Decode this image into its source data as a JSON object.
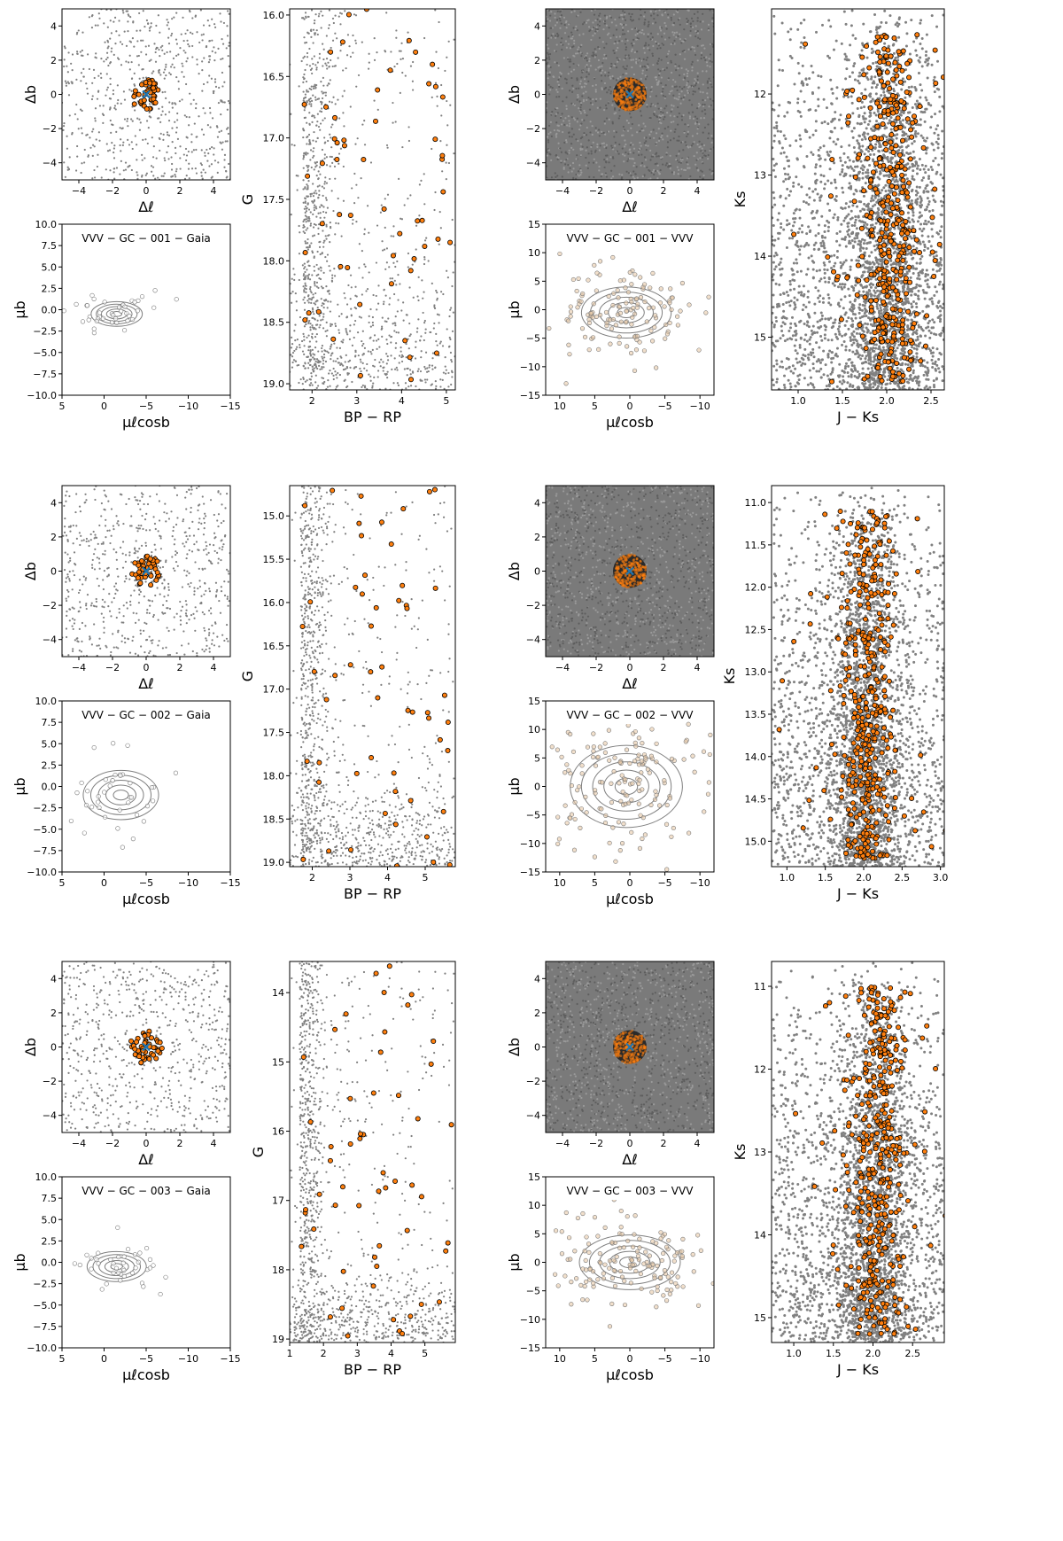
{
  "colors": {
    "field": "#808080",
    "member": "#ff7f0e",
    "member_edge": "#000000",
    "center": "#1f77b4",
    "contour": "#7f7f7f"
  },
  "rows": [
    {
      "cluster": "VVV-GC-001",
      "sky_gaia": {
        "type": "scatter",
        "xlabel": "Δℓ",
        "ylabel": "Δb",
        "xlim": [
          -5,
          5
        ],
        "ylim": [
          -5,
          5
        ],
        "xticks": [
          "−4",
          "−2",
          "0",
          "2",
          "4"
        ],
        "yticks": [
          "4",
          "2",
          "0",
          "−2",
          "−4"
        ],
        "density": "sparse",
        "members": "cluster",
        "member_radius": 0.9
      },
      "pm_gaia": {
        "type": "scatter+contour",
        "title": "VVV − GC − 001  −  Gaia",
        "xlabel": "μℓcosb",
        "ylabel": "μb",
        "xlim": [
          5,
          -15
        ],
        "ylim": [
          -10,
          10
        ],
        "xticks": [
          "5",
          "0",
          "−5",
          "−10",
          "−15"
        ],
        "yticks": [
          "10.0",
          "7.5",
          "5.0",
          "2.5",
          "0.0",
          "−2.5",
          "−5.0",
          "−7.5",
          "−10.0"
        ],
        "center": [
          -1.5,
          -0.5
        ],
        "spread": [
          1.9,
          0.9
        ],
        "points": 40
      },
      "cmd_gaia": {
        "type": "scatter",
        "xlabel": "BP − RP",
        "ylabel": "G",
        "xlim": [
          1.5,
          5.2
        ],
        "ylim": [
          19.05,
          15.95
        ],
        "xticks": [
          "2",
          "3",
          "4",
          "5"
        ],
        "yticks": [
          "16.0",
          "16.5",
          "17.0",
          "17.5",
          "18.0",
          "18.5",
          "19.0"
        ]
      },
      "sky_vvv": {
        "type": "scatter",
        "xlabel": "Δℓ",
        "ylabel": "Δb",
        "xlim": [
          -5,
          5
        ],
        "ylim": [
          -5,
          5
        ],
        "xticks": [
          "−4",
          "−2",
          "0",
          "2",
          "4"
        ],
        "yticks": [
          "4",
          "2",
          "0",
          "−2",
          "−4"
        ],
        "density": "dense",
        "members": "disk",
        "member_radius": 1.0
      },
      "pm_vvv": {
        "type": "scatter+contour",
        "title": "VVV − GC − 001  −  VVV",
        "xlabel": "μℓcosb",
        "ylabel": "μb",
        "xlim": [
          12,
          -12
        ],
        "ylim": [
          -15,
          15
        ],
        "xticks": [
          "10",
          "5",
          "0",
          "−5",
          "−10"
        ],
        "yticks": [
          "15",
          "10",
          "5",
          "0",
          "−5",
          "−10",
          "−15"
        ],
        "center": [
          0.5,
          -0.5
        ],
        "spread": [
          4.0,
          2.8
        ],
        "points": 140
      },
      "cmd_vvv": {
        "type": "scatter",
        "xlabel": "J − Ks",
        "ylabel": "Ks",
        "xlim": [
          0.7,
          2.65
        ],
        "ylim": [
          15.65,
          10.95
        ],
        "xticks": [
          "1.0",
          "1.5",
          "2.0",
          "2.5"
        ],
        "yticks": [
          "12",
          "13",
          "14",
          "15"
        ]
      }
    },
    {
      "cluster": "VVV-GC-002",
      "sky_gaia": {
        "type": "scatter",
        "xlabel": "Δℓ",
        "ylabel": "Δb",
        "xlim": [
          -5,
          5
        ],
        "ylim": [
          -5,
          5
        ],
        "xticks": [
          "−4",
          "−2",
          "0",
          "2",
          "4"
        ],
        "yticks": [
          "4",
          "2",
          "0",
          "−2",
          "−4"
        ],
        "density": "sparse",
        "members": "cluster",
        "member_radius": 0.9
      },
      "pm_gaia": {
        "type": "scatter+contour",
        "title": "VVV − GC − 002  −  Gaia",
        "xlabel": "μℓcosb",
        "ylabel": "μb",
        "xlim": [
          5,
          -15
        ],
        "ylim": [
          -10,
          10
        ],
        "xticks": [
          "5",
          "0",
          "−5",
          "−10",
          "−15"
        ],
        "yticks": [
          "10.0",
          "7.5",
          "5.0",
          "2.5",
          "0.0",
          "−2.5",
          "−5.0",
          "−7.5",
          "−10.0"
        ],
        "center": [
          -2.0,
          -1.0
        ],
        "spread": [
          2.8,
          1.8
        ],
        "points": 40
      },
      "cmd_gaia": {
        "type": "scatter",
        "xlabel": "BP − RP",
        "ylabel": "G",
        "xlim": [
          1.4,
          5.8
        ],
        "ylim": [
          19.05,
          14.65
        ],
        "xticks": [
          "2",
          "3",
          "4",
          "5"
        ],
        "yticks": [
          "15.0",
          "15.5",
          "16.0",
          "16.5",
          "17.0",
          "17.5",
          "18.0",
          "18.5",
          "19.0"
        ]
      },
      "sky_vvv": {
        "type": "scatter",
        "xlabel": "Δℓ",
        "ylabel": "Δb",
        "xlim": [
          -5,
          5
        ],
        "ylim": [
          -5,
          5
        ],
        "xticks": [
          "−4",
          "−2",
          "0",
          "2",
          "4"
        ],
        "yticks": [
          "4",
          "2",
          "0",
          "−2",
          "−4"
        ],
        "density": "dense",
        "members": "disk",
        "member_radius": 1.0
      },
      "pm_vvv": {
        "type": "scatter+contour",
        "title": "VVV − GC − 002  −  VVV",
        "xlabel": "μℓcosb",
        "ylabel": "μb",
        "xlim": [
          12,
          -12
        ],
        "ylim": [
          -15,
          15
        ],
        "xticks": [
          "10",
          "5",
          "0",
          "−5",
          "−10"
        ],
        "yticks": [
          "15",
          "10",
          "5",
          "0",
          "−5",
          "−10",
          "−15"
        ],
        "center": [
          0.5,
          0.0
        ],
        "spread": [
          5.0,
          4.5
        ],
        "points": 160
      },
      "cmd_vvv": {
        "type": "scatter",
        "xlabel": "J − Ks",
        "ylabel": "Ks",
        "xlim": [
          0.8,
          3.05
        ],
        "ylim": [
          15.3,
          10.8
        ],
        "xticks": [
          "1.0",
          "1.5",
          "2.0",
          "2.5",
          "3.0"
        ],
        "yticks": [
          "11.0",
          "11.5",
          "12.0",
          "12.5",
          "13.0",
          "13.5",
          "14.0",
          "14.5",
          "15.0"
        ]
      }
    },
    {
      "cluster": "VVV-GC-003",
      "sky_gaia": {
        "type": "scatter",
        "xlabel": "Δℓ",
        "ylabel": "Δb",
        "xlim": [
          -5,
          5
        ],
        "ylim": [
          -5,
          5
        ],
        "xticks": [
          "−4",
          "−2",
          "0",
          "2",
          "4"
        ],
        "yticks": [
          "4",
          "2",
          "0",
          "−2",
          "−4"
        ],
        "density": "sparse",
        "members": "cluster",
        "member_radius": 1.0
      },
      "pm_gaia": {
        "type": "scatter+contour",
        "title": "VVV − GC − 003  −  Gaia",
        "xlabel": "μℓcosb",
        "ylabel": "μb",
        "xlim": [
          5,
          -15
        ],
        "ylim": [
          -10,
          10
        ],
        "xticks": [
          "5",
          "0",
          "−5",
          "−10",
          "−15"
        ],
        "yticks": [
          "10.0",
          "7.5",
          "5.0",
          "2.5",
          "0.0",
          "−2.5",
          "−5.0",
          "−7.5",
          "−10.0"
        ],
        "center": [
          -1.5,
          -0.5
        ],
        "spread": [
          2.2,
          1.1
        ],
        "points": 40
      },
      "cmd_gaia": {
        "type": "scatter",
        "xlabel": "BP − RP",
        "ylabel": "G",
        "xlim": [
          1.0,
          5.9
        ],
        "ylim": [
          19.05,
          13.55
        ],
        "xticks": [
          "1",
          "2",
          "3",
          "4",
          "5"
        ],
        "yticks": [
          "14",
          "15",
          "16",
          "17",
          "18",
          "19"
        ]
      },
      "sky_vvv": {
        "type": "scatter",
        "xlabel": "Δℓ",
        "ylabel": "Δb",
        "xlim": [
          -5,
          5
        ],
        "ylim": [
          -5,
          5
        ],
        "xticks": [
          "−4",
          "−2",
          "0",
          "2",
          "4"
        ],
        "yticks": [
          "4",
          "2",
          "0",
          "−2",
          "−4"
        ],
        "density": "dense",
        "members": "disk",
        "member_radius": 1.0
      },
      "pm_vvv": {
        "type": "scatter+contour",
        "title": "VVV − GC − 003  −  VVV",
        "xlabel": "μℓcosb",
        "ylabel": "μb",
        "xlim": [
          12,
          -12
        ],
        "ylim": [
          -15,
          15
        ],
        "xticks": [
          "10",
          "5",
          "0",
          "−5",
          "−10"
        ],
        "yticks": [
          "15",
          "10",
          "5",
          "0",
          "−5",
          "−10",
          "−15"
        ],
        "center": [
          0.0,
          0.0
        ],
        "spread": [
          4.5,
          3.0
        ],
        "points": 150
      },
      "cmd_vvv": {
        "type": "scatter",
        "xlabel": "J − Ks",
        "ylabel": "Ks",
        "xlim": [
          0.72,
          2.9
        ],
        "ylim": [
          15.3,
          10.7
        ],
        "xticks": [
          "1.0",
          "1.5",
          "2.0",
          "2.5"
        ],
        "yticks": [
          "11",
          "12",
          "13",
          "14",
          "15"
        ]
      }
    }
  ]
}
